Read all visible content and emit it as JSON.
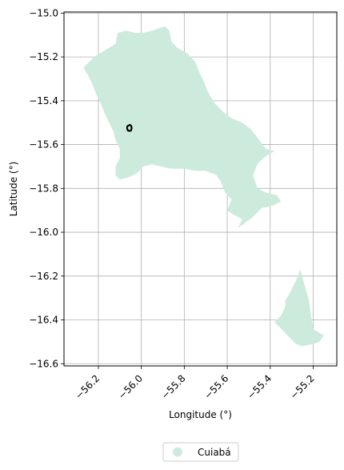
{
  "chart_data": {
    "type": "map",
    "xlabel": "Longitude (°)",
    "ylabel": "Latitude (°)",
    "xlim": [
      -56.36,
      -55.09
    ],
    "ylim": [
      -16.61,
      -14.995
    ],
    "xticks": [
      -56.2,
      -56.0,
      -55.8,
      -55.6,
      -55.4,
      -55.2
    ],
    "xtick_labels": [
      "−56.2",
      "−56.0",
      "−55.8",
      "−55.6",
      "−55.4",
      "−55.2"
    ],
    "yticks": [
      -15.0,
      -15.2,
      -15.4,
      -15.6,
      -15.8,
      -16.0,
      -16.2,
      -16.4,
      -16.6
    ],
    "ytick_labels": [
      "−15.0",
      "−15.2",
      "−15.4",
      "−15.6",
      "−15.8",
      "−16.0",
      "−16.2",
      "−16.4",
      "−16.6"
    ],
    "grid": true,
    "legend_position": "bottom-center",
    "legend": [
      {
        "label": "Cuiabá",
        "color": "#cdebdd"
      }
    ],
    "region_color": "#cdebdd",
    "outline_color": "#000000",
    "regions": [
      {
        "name": "Cuiabá",
        "polygons": [
          [
            [
              -56.25,
              -15.23
            ],
            [
              -56.22,
              -15.2
            ],
            [
              -56.17,
              -15.17
            ],
            [
              -56.12,
              -15.14
            ],
            [
              -56.11,
              -15.09
            ],
            [
              -56.07,
              -15.08
            ],
            [
              -56.03,
              -15.09
            ],
            [
              -55.99,
              -15.09
            ],
            [
              -55.95,
              -15.08
            ],
            [
              -55.89,
              -15.06
            ],
            [
              -55.87,
              -15.08
            ],
            [
              -55.86,
              -15.13
            ],
            [
              -55.83,
              -15.16
            ],
            [
              -55.79,
              -15.18
            ],
            [
              -55.75,
              -15.22
            ],
            [
              -55.73,
              -15.27
            ],
            [
              -55.71,
              -15.31
            ],
            [
              -55.69,
              -15.36
            ],
            [
              -55.66,
              -15.41
            ],
            [
              -55.62,
              -15.45
            ],
            [
              -55.58,
              -15.48
            ],
            [
              -55.53,
              -15.5
            ],
            [
              -55.49,
              -15.53
            ],
            [
              -55.45,
              -15.58
            ],
            [
              -55.42,
              -15.62
            ],
            [
              -55.38,
              -15.63
            ],
            [
              -55.43,
              -15.66
            ],
            [
              -55.46,
              -15.69
            ],
            [
              -55.48,
              -15.74
            ],
            [
              -55.46,
              -15.8
            ],
            [
              -55.42,
              -15.82
            ],
            [
              -55.37,
              -15.83
            ],
            [
              -55.35,
              -15.86
            ],
            [
              -55.39,
              -15.88
            ],
            [
              -55.44,
              -15.89
            ],
            [
              -55.48,
              -15.93
            ],
            [
              -55.52,
              -15.96
            ],
            [
              -55.55,
              -15.98
            ],
            [
              -55.53,
              -15.94
            ],
            [
              -55.57,
              -15.92
            ],
            [
              -55.6,
              -15.9
            ],
            [
              -55.58,
              -15.85
            ],
            [
              -55.61,
              -15.82
            ],
            [
              -55.63,
              -15.77
            ],
            [
              -55.65,
              -15.74
            ],
            [
              -55.7,
              -15.72
            ],
            [
              -55.75,
              -15.72
            ],
            [
              -55.8,
              -15.71
            ],
            [
              -55.86,
              -15.71
            ],
            [
              -55.91,
              -15.7
            ],
            [
              -55.95,
              -15.69
            ],
            [
              -55.99,
              -15.7
            ],
            [
              -56.02,
              -15.73
            ],
            [
              -56.06,
              -15.75
            ],
            [
              -56.1,
              -15.76
            ],
            [
              -56.12,
              -15.74
            ],
            [
              -56.12,
              -15.7
            ],
            [
              -56.1,
              -15.66
            ],
            [
              -56.1,
              -15.62
            ],
            [
              -56.12,
              -15.58
            ],
            [
              -56.13,
              -15.54
            ],
            [
              -56.15,
              -15.5
            ],
            [
              -56.17,
              -15.46
            ],
            [
              -56.19,
              -15.41
            ],
            [
              -56.21,
              -15.37
            ],
            [
              -56.23,
              -15.32
            ],
            [
              -56.25,
              -15.28
            ],
            [
              -56.27,
              -15.25
            ]
          ],
          [
            [
              -55.31,
              -16.28
            ],
            [
              -55.28,
              -16.22
            ],
            [
              -55.26,
              -16.17
            ],
            [
              -55.24,
              -16.24
            ],
            [
              -55.22,
              -16.31
            ],
            [
              -55.21,
              -16.38
            ],
            [
              -55.2,
              -16.44
            ],
            [
              -55.17,
              -16.46
            ],
            [
              -55.15,
              -16.47
            ],
            [
              -55.17,
              -16.5
            ],
            [
              -55.2,
              -16.51
            ],
            [
              -55.25,
              -16.52
            ],
            [
              -55.28,
              -16.51
            ],
            [
              -55.32,
              -16.47
            ],
            [
              -55.35,
              -16.44
            ],
            [
              -55.38,
              -16.41
            ],
            [
              -55.35,
              -16.38
            ],
            [
              -55.33,
              -16.34
            ],
            [
              -55.33,
              -16.31
            ]
          ]
        ]
      }
    ],
    "outline": [
      [
        -56.06,
        -15.513
      ],
      [
        -56.053,
        -15.51
      ],
      [
        -56.047,
        -15.515
      ],
      [
        -56.045,
        -15.525
      ],
      [
        -56.048,
        -15.535
      ],
      [
        -56.055,
        -15.538
      ],
      [
        -56.063,
        -15.535
      ],
      [
        -56.066,
        -15.525
      ],
      [
        -56.065,
        -15.516
      ]
    ]
  }
}
